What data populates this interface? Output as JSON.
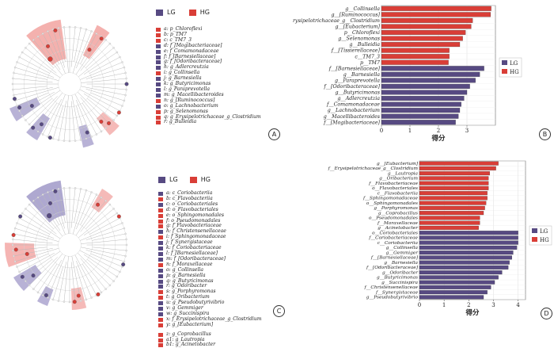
{
  "colors": {
    "LG": "#574a82",
    "HG": "#d93e37",
    "lg_light": "#9a92c4",
    "hg_light": "#f2a3a0"
  },
  "legends": {
    "lg": "LG",
    "hg": "HG"
  },
  "panel_labels": [
    "A",
    "B",
    "C",
    "D"
  ],
  "taxa_A": [
    {
      "label": "a: p_Chloroflexi",
      "g": "HG"
    },
    {
      "label": "b: p_TM7",
      "g": "HG"
    },
    {
      "label": "c: c_TM7_3",
      "g": "HG"
    },
    {
      "label": "d: f_[Mogibacteriaceae]",
      "g": "LG"
    },
    {
      "label": "e: f_Comamonadaceae",
      "g": "LG"
    },
    {
      "label": "f: f_[Barnesiellaceae]",
      "g": "LG"
    },
    {
      "label": "g: f_[Odoribacteraceae]",
      "g": "LG"
    },
    {
      "label": "h: g_Adlercreutzia",
      "g": "LG"
    },
    {
      "label": "i: g_Collinsella",
      "g": "HG"
    },
    {
      "label": "j: g_Barnesiella",
      "g": "LG"
    },
    {
      "label": "k: g_Butyricimonas",
      "g": "LG"
    },
    {
      "label": "l: g_Paraprevotella",
      "g": "LG"
    },
    {
      "label": "m: g_Macellibacteroides",
      "g": "LG"
    },
    {
      "label": "n: g_[Ruminococcus]",
      "g": "HG"
    },
    {
      "label": "o: g_Lachnobacterium",
      "g": "LG"
    },
    {
      "label": "p: g_Selenomonas",
      "g": "HG"
    },
    {
      "label": "q: g_Erysipelotrichaceae_g_Clostridium",
      "g": "HG"
    },
    {
      "label": "r: g_Bulleidia",
      "g": "HG"
    }
  ],
  "taxa_C": [
    {
      "label": "a: c_Coriobacteriia",
      "g": "LG"
    },
    {
      "label": "b: c_Flavobacteriia",
      "g": "HG"
    },
    {
      "label": "c: o_Coriobacteriales",
      "g": "LG"
    },
    {
      "label": "d: o_Flavobacteriales",
      "g": "HG"
    },
    {
      "label": "e: o_Sphingomonadales",
      "g": "HG"
    },
    {
      "label": "f: o_Pseudomonadales",
      "g": "HG"
    },
    {
      "label": "g: f_Flavobacteriaceae",
      "g": "HG"
    },
    {
      "label": "h: f_Christensenellaceae",
      "g": "LG"
    },
    {
      "label": "i: f_Sphingomonadaceae",
      "g": "HG"
    },
    {
      "label": "j: f_Synergistaceae",
      "g": "LG"
    },
    {
      "label": "k: f_Coriobacteriaceae",
      "g": "LG"
    },
    {
      "label": "l: f_[Barnesiellaceae]",
      "g": "LG"
    },
    {
      "label": "m: f_[Odoribacteraceae]",
      "g": "LG"
    },
    {
      "label": "n: f_Moraxellaceae",
      "g": "HG"
    },
    {
      "label": "o: g_Collinsella",
      "g": "LG"
    },
    {
      "label": "p: g_Barnesiella",
      "g": "LG"
    },
    {
      "label": "q: g_Butyricimonas",
      "g": "LG"
    },
    {
      "label": "r: g_Odoribacter",
      "g": "LG"
    },
    {
      "label": "s: g_Porphyromonas",
      "g": "HG"
    },
    {
      "label": "t: g_Oribacterium",
      "g": "HG"
    },
    {
      "label": "u: g_Pseudobutyrivibrio",
      "g": "LG"
    },
    {
      "label": "v: g_Gemmiger",
      "g": "LG"
    },
    {
      "label": "w: g_Succinispira",
      "g": "LG"
    },
    {
      "label": "x: f_Erysipelotrichaceae_g_Clostridium",
      "g": "HG"
    },
    {
      "label": "y: g_[Eubacterium]",
      "g": "HG"
    },
    {
      "label": "z: g_Coprobacillus",
      "g": "HG"
    },
    {
      "label": "a1: g_Lautropia",
      "g": "HG"
    },
    {
      "label": "b1: g_Acinetobacter",
      "g": "HG"
    }
  ],
  "chart_data": [
    {
      "type": "bar",
      "orientation": "horizontal",
      "xlabel": "得分",
      "xticks": [
        0,
        1,
        2,
        3
      ],
      "xlim": [
        0,
        4.0
      ],
      "grid": true,
      "legend": "right",
      "categories": [
        "g__Collinsella",
        "g__[Ruminococcus]",
        "f__Erysipelotrichaceae_g__Clostridium",
        "g__[Eubacterium]",
        "p__Chloroflexi",
        "g__Selenomonas",
        "g__Bulleidia",
        "f__[Tissierellaceae]",
        "c__TM7_3",
        "p__TM7",
        "f__[Barnesiellaceae]",
        "g__Barnesiella",
        "g__Paraprevotella",
        "f__[Odoribacteraceae]",
        "g__Butyricimonas",
        "g__Adlercreutzia",
        "f__Comamonadaceae",
        "g__Lachnobacterium",
        "g__Macellibacteroides",
        "f__[Mogibacteriaceae]"
      ],
      "values": [
        3.85,
        3.83,
        3.2,
        3.15,
        2.95,
        2.85,
        2.75,
        2.38,
        2.38,
        2.35,
        3.6,
        3.45,
        3.3,
        3.1,
        3.0,
        2.9,
        2.8,
        2.75,
        2.7,
        2.6
      ],
      "groups": [
        "HG",
        "HG",
        "HG",
        "HG",
        "HG",
        "HG",
        "HG",
        "HG",
        "HG",
        "HG",
        "LG",
        "LG",
        "LG",
        "LG",
        "LG",
        "LG",
        "LG",
        "LG",
        "LG",
        "LG"
      ]
    },
    {
      "type": "bar",
      "orientation": "horizontal",
      "xlabel": "得分",
      "xticks": [
        0,
        1,
        2,
        3,
        4
      ],
      "xlim": [
        0,
        4.3
      ],
      "grid": true,
      "legend": "right",
      "categories": [
        "g__[Eubacterium]",
        "f__Erysipelotrichaceae_g__Clostridium",
        "g__Lautropia",
        "g__Oribacterium",
        "f__Flavobacteriaceae",
        "o__Flavobacteriales",
        "c__Flavobacteriia",
        "f__Sphingomonadaceae",
        "o__Sphingomonadales",
        "g__Porphyromonas",
        "g__Coprobacillus",
        "o__Pseudomonadales",
        "f__Moraxellaceae",
        "g__Acinetobacter",
        "o__Coriobacteriales",
        "f__Coriobacteriaceae",
        "c__Coriobacteriia",
        "g__Collinsella",
        "g__Gemmiger",
        "f__[Barnesiellaceae]",
        "g__Barnesiella",
        "f__[Odoribacteraceae]",
        "g__Odoribacter",
        "g__Butyricimonas",
        "g__Succinispira",
        "f__Christensenellaceae",
        "f__Synergistaceae",
        "g__Pseudobutyrivibrio"
      ],
      "values": [
        3.2,
        3.1,
        2.85,
        2.8,
        2.8,
        2.8,
        2.75,
        2.75,
        2.7,
        2.65,
        2.6,
        2.45,
        2.45,
        2.4,
        4.0,
        4.0,
        4.0,
        3.95,
        3.8,
        3.75,
        3.65,
        3.6,
        3.35,
        3.2,
        3.05,
        2.9,
        2.75,
        2.6
      ],
      "groups": [
        "HG",
        "HG",
        "HG",
        "HG",
        "HG",
        "HG",
        "HG",
        "HG",
        "HG",
        "HG",
        "HG",
        "HG",
        "HG",
        "HG",
        "LG",
        "LG",
        "LG",
        "LG",
        "LG",
        "LG",
        "LG",
        "LG",
        "LG",
        "LG",
        "LG",
        "LG",
        "LG",
        "LG"
      ]
    }
  ]
}
